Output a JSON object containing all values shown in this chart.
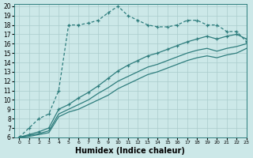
{
  "xlabel": "Humidex (Indice chaleur)",
  "ylabel": "",
  "bg_color": "#cce8e8",
  "line_color": "#2e7d7d",
  "grid_color": "#aacccc",
  "xlim": [
    -0.5,
    23
  ],
  "ylim": [
    6,
    20.2
  ],
  "xticks": [
    0,
    1,
    2,
    3,
    4,
    5,
    6,
    7,
    8,
    9,
    10,
    11,
    12,
    13,
    14,
    15,
    16,
    17,
    18,
    19,
    20,
    21,
    22,
    23
  ],
  "yticks": [
    6,
    7,
    8,
    9,
    10,
    11,
    12,
    13,
    14,
    15,
    16,
    17,
    18,
    19,
    20
  ],
  "lines": [
    {
      "x": [
        0,
        1,
        2,
        3,
        4,
        5,
        6,
        7,
        8,
        9,
        10,
        11,
        12,
        13,
        14,
        15,
        16,
        17,
        18,
        19,
        20,
        21,
        22,
        23
      ],
      "y": [
        6,
        7,
        8,
        8.5,
        11,
        18,
        18,
        18.2,
        18.5,
        19.3,
        20,
        19,
        18.5,
        18,
        17.8,
        17.8,
        18,
        18.5,
        18.5,
        18,
        18,
        17.3,
        17.3,
        16.2
      ],
      "marker": true,
      "dashed": true
    },
    {
      "x": [
        0,
        1,
        2,
        3,
        4,
        5,
        6,
        7,
        8,
        9,
        10,
        11,
        12,
        13,
        14,
        15,
        16,
        17,
        18,
        19,
        20,
        21,
        22,
        23
      ],
      "y": [
        6,
        6.3,
        6.6,
        7.0,
        9.0,
        9.5,
        10.2,
        10.8,
        11.5,
        12.3,
        13.1,
        13.7,
        14.2,
        14.7,
        15.0,
        15.4,
        15.8,
        16.2,
        16.5,
        16.8,
        16.5,
        16.8,
        17.0,
        16.5
      ],
      "marker": true,
      "dashed": false
    },
    {
      "x": [
        0,
        1,
        2,
        3,
        4,
        5,
        6,
        7,
        8,
        9,
        10,
        11,
        12,
        13,
        14,
        15,
        16,
        17,
        18,
        19,
        20,
        21,
        22,
        23
      ],
      "y": [
        6,
        6.2,
        6.4,
        6.7,
        8.5,
        9.0,
        9.5,
        10.0,
        10.7,
        11.3,
        12.0,
        12.5,
        13.0,
        13.5,
        13.8,
        14.2,
        14.6,
        15.0,
        15.3,
        15.5,
        15.2,
        15.5,
        15.7,
        16.0
      ],
      "marker": false,
      "dashed": false
    },
    {
      "x": [
        0,
        1,
        2,
        3,
        4,
        5,
        6,
        7,
        8,
        9,
        10,
        11,
        12,
        13,
        14,
        15,
        16,
        17,
        18,
        19,
        20,
        21,
        22,
        23
      ],
      "y": [
        6,
        6.1,
        6.3,
        6.5,
        8.2,
        8.7,
        9.0,
        9.5,
        10.0,
        10.5,
        11.2,
        11.7,
        12.2,
        12.7,
        13.0,
        13.4,
        13.8,
        14.2,
        14.5,
        14.7,
        14.5,
        14.8,
        15.0,
        15.5
      ],
      "marker": false,
      "dashed": false
    }
  ]
}
